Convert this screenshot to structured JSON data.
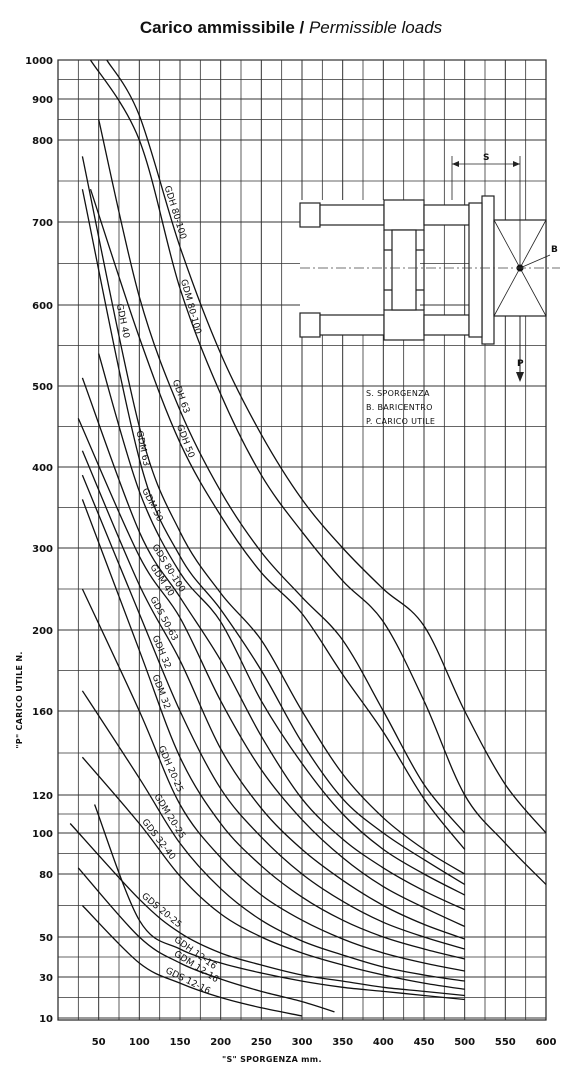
{
  "title": {
    "bold": "Carico ammissibile /",
    "italic": " Permissible loads"
  },
  "chart_data": {
    "type": "line",
    "title": "Carico ammissibile / Permissible loads",
    "xlabel": "\"S\" SPORGENZA  mm.",
    "ylabel": "\"P\" CARICO UTILE  N.",
    "x_ticks": [
      50,
      100,
      150,
      200,
      250,
      300,
      350,
      400,
      450,
      500,
      550,
      600
    ],
    "y_ticks": [
      10,
      30,
      50,
      80,
      100,
      120,
      160,
      200,
      300,
      400,
      500,
      600,
      700,
      800,
      900,
      1000
    ],
    "xlim": [
      0,
      600
    ],
    "grid": true,
    "series": [
      {
        "name": "GDH 80-100",
        "x": [
          60,
          100,
          150,
          200,
          250,
          300,
          350,
          400,
          450,
          500,
          550,
          600
        ],
        "y": [
          1000,
          860,
          670,
          540,
          440,
          360,
          300,
          250,
          205,
          160,
          125,
          100
        ]
      },
      {
        "name": "GDM 80-100",
        "x": [
          40,
          100,
          150,
          200,
          250,
          300,
          350,
          400,
          450,
          500,
          550,
          600
        ],
        "y": [
          1000,
          800,
          620,
          490,
          390,
          320,
          260,
          210,
          165,
          120,
          95,
          75
        ]
      },
      {
        "name": "GDH 63",
        "x": [
          50,
          100,
          150,
          200,
          250,
          300,
          350,
          400,
          450,
          500
        ],
        "y": [
          850,
          610,
          470,
          370,
          295,
          240,
          195,
          160,
          125,
          100
        ]
      },
      {
        "name": "GDH 50",
        "x": [
          40,
          100,
          150,
          200,
          250,
          300,
          350,
          400,
          450,
          500
        ],
        "y": [
          740,
          560,
          430,
          340,
          270,
          220,
          178,
          150,
          118,
          92
        ]
      },
      {
        "name": "GDH 40",
        "x": [
          30,
          100,
          150,
          200,
          250,
          300,
          350,
          400,
          450,
          500
        ],
        "y": [
          780,
          450,
          320,
          245,
          195,
          160,
          130,
          108,
          92,
          80
        ]
      },
      {
        "name": "GDM 63",
        "x": [
          30,
          100,
          150,
          200,
          250,
          300,
          350,
          400,
          450,
          500
        ],
        "y": [
          740,
          410,
          290,
          225,
          180,
          145,
          118,
          100,
          87,
          75
        ]
      },
      {
        "name": "GDM 50",
        "x": [
          50,
          100,
          150,
          200,
          250,
          300,
          350,
          400,
          450,
          500
        ],
        "y": [
          540,
          370,
          270,
          210,
          165,
          135,
          110,
          92,
          80,
          70
        ]
      },
      {
        "name": "GDS 80-100",
        "x": [
          30,
          100,
          150,
          200,
          250,
          300,
          350,
          400,
          450,
          500
        ],
        "y": [
          510,
          320,
          240,
          185,
          148,
          118,
          97,
          83,
          72,
          63
        ]
      },
      {
        "name": "GDM 40",
        "x": [
          25,
          100,
          150,
          200,
          250,
          300,
          350,
          400,
          450,
          500
        ],
        "y": [
          460,
          290,
          215,
          165,
          132,
          107,
          88,
          74,
          64,
          55
        ]
      },
      {
        "name": "GDS 50-63",
        "x": [
          30,
          100,
          150,
          200,
          250,
          300,
          350,
          400,
          450,
          500
        ],
        "y": [
          420,
          255,
          185,
          142,
          113,
          92,
          77,
          65,
          56,
          49
        ]
      },
      {
        "name": "GDH 32",
        "x": [
          30,
          100,
          150,
          200,
          250,
          300,
          350,
          400,
          450,
          500
        ],
        "y": [
          390,
          220,
          160,
          123,
          98,
          80,
          67,
          57,
          50,
          44
        ]
      },
      {
        "name": "GDM 32",
        "x": [
          30,
          100,
          150,
          200,
          250,
          300,
          350,
          400,
          450,
          500
        ],
        "y": [
          360,
          190,
          138,
          105,
          84,
          69,
          58,
          50,
          44,
          39
        ]
      },
      {
        "name": "GDH 20-25",
        "x": [
          30,
          100,
          150,
          200,
          250,
          300,
          350,
          400,
          450,
          500
        ],
        "y": [
          250,
          160,
          115,
          88,
          70,
          58,
          49,
          42,
          37,
          33
        ]
      },
      {
        "name": "GDM 20-25",
        "x": [
          30,
          100,
          150,
          200,
          250,
          300,
          350,
          400,
          450,
          500
        ],
        "y": [
          170,
          128,
          95,
          73,
          58,
          48,
          41,
          35,
          31,
          28
        ]
      },
      {
        "name": "GDS 32-40",
        "x": [
          30,
          100,
          150,
          200,
          250,
          300,
          350,
          400,
          450,
          500
        ],
        "y": [
          138,
          105,
          79,
          61,
          50,
          42,
          36,
          31,
          27,
          24
        ]
      },
      {
        "name": "GDS 20-25",
        "x": [
          15,
          100,
          150,
          200,
          250,
          300,
          350,
          400,
          450,
          500
        ],
        "y": [
          105,
          68,
          52,
          42,
          36,
          31,
          28,
          25,
          23,
          21
        ]
      },
      {
        "name": "GDH 12-16",
        "x": [
          45,
          100,
          150,
          200,
          250,
          300,
          350,
          400,
          450,
          500
        ],
        "y": [
          115,
          58,
          44,
          37,
          32,
          28,
          25,
          23,
          21,
          19
        ]
      },
      {
        "name": "GDM 12-16",
        "x": [
          25,
          100,
          150,
          200,
          250,
          300,
          340
        ],
        "y": [
          83,
          50,
          37,
          29,
          23,
          18,
          13
        ]
      },
      {
        "name": "GDS 12-16",
        "x": [
          30,
          100,
          150,
          200,
          250,
          300
        ],
        "y": [
          65,
          37,
          27,
          20,
          15,
          11
        ]
      }
    ]
  },
  "curve_labels": [
    {
      "text": "GDH 80-100",
      "series": "GDH 80-100"
    },
    {
      "text": "GDM 80-100",
      "series": "GDM 80-100"
    },
    {
      "text": "GDH 63",
      "series": "GDH 63"
    },
    {
      "text": "GDH 50",
      "series": "GDH 50"
    },
    {
      "text": "GDH 40",
      "series": "GDH 40"
    },
    {
      "text": "GDM 63",
      "series": "GDM 63"
    },
    {
      "text": "GDM 50",
      "series": "GDM 50"
    },
    {
      "text": "GDS 80-100",
      "series": "GDS 80-100"
    },
    {
      "text": "GDM 40",
      "series": "GDM 40"
    },
    {
      "text": "GDS 50-63",
      "series": "GDS 50-63"
    },
    {
      "text": "GDH 32",
      "series": "GDH 32"
    },
    {
      "text": "GDM 32",
      "series": "GDM 32"
    },
    {
      "text": "GDH 20-25",
      "series": "GDH 20-25"
    },
    {
      "text": "GDM 20-25",
      "series": "GDM 20-25"
    },
    {
      "text": "GDS 32-40",
      "series": "GDS 32-40"
    },
    {
      "text": "GDS 20-25",
      "series": "GDS 20-25"
    },
    {
      "text": "GDH 12-16",
      "series": "GDH 12-16"
    },
    {
      "text": "GDM 12-16",
      "series": "GDM 12-16"
    },
    {
      "text": "GDS 12-16",
      "series": "GDS 12-16"
    }
  ],
  "diagram": {
    "s_label": "S",
    "b_label": "B",
    "p_label": "P",
    "legend": [
      "S. SPORGENZA",
      "B. BARICENTRO",
      "P. CARICO UTILE"
    ]
  }
}
